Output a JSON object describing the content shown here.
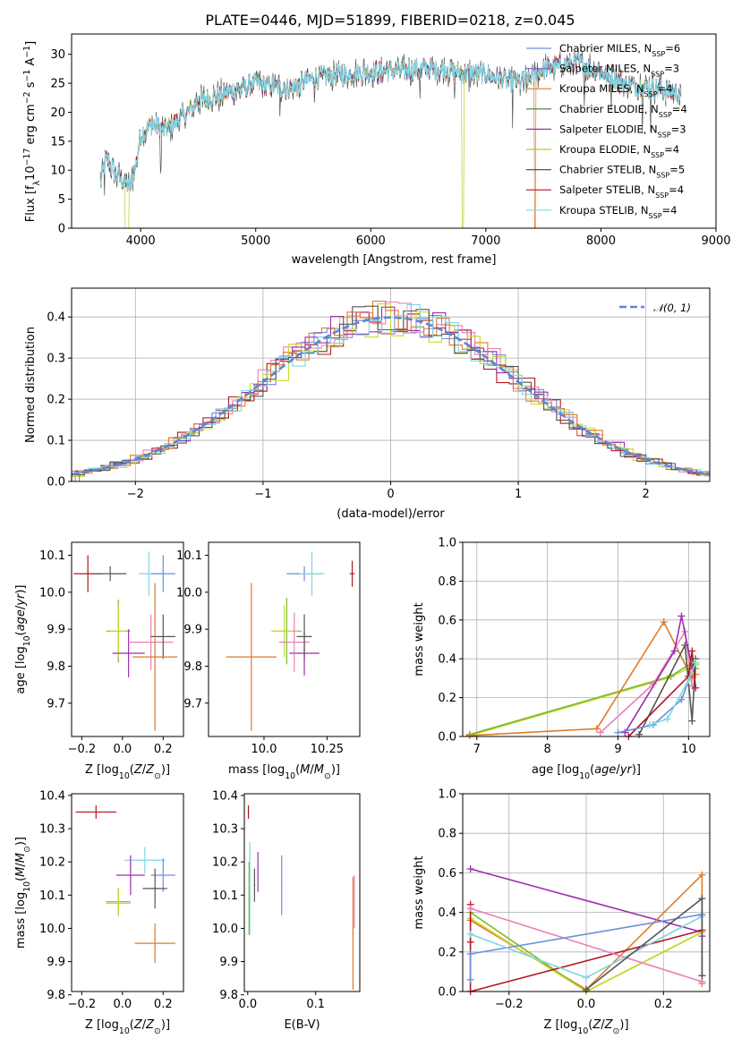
{
  "figure_title": "PLATE=0446, MJD=51899, FIBERID=0218, z=0.045",
  "colors": {
    "Chabrier MILES": "#6a8fdc",
    "Salpeter MILES": "#8a6ac8",
    "Kroupa MILES": "#e07b28",
    "Chabrier ELODIE": "#3c7a3c",
    "Salpeter ELODIE": "#9b2fae",
    "Kroupa ELODIE": "#b8c92a",
    "Chabrier STELIB": "#555555",
    "Salpeter STELIB": "#b0171f",
    "Kroupa STELIB": "#7fd6e0",
    "green": "#7ab82e",
    "pink": "#e87fb8",
    "orange": "#e07b28",
    "purple": "#9b2fae",
    "grey": "#555555",
    "red": "#b0171f",
    "cyan": "#7fd6e0",
    "blue": "#6a8fdc",
    "yellow": "#c9d92a"
  },
  "chart_data": [
    {
      "type": "line",
      "panel": "spectrum",
      "title": "PLATE=0446, MJD=51899, FIBERID=0218, z=0.045",
      "xlabel": "wavelength [Angstrom, rest frame]",
      "ylabel": "Flux [f_λ 10^-17 erg cm^-2 s^-1 A^-1]",
      "xlim": [
        3400,
        9000
      ],
      "ylim": [
        0,
        33.5
      ],
      "xticks": [
        4000,
        5000,
        6000,
        7000,
        8000,
        9000
      ],
      "yticks": [
        0,
        5,
        10,
        15,
        20,
        25,
        30
      ],
      "continuum": {
        "x": [
          3650,
          3700,
          3800,
          3900,
          3950,
          4000,
          4100,
          4200,
          4400,
          4500,
          4700,
          5000,
          5300,
          5500,
          6000,
          6500,
          7000,
          7300,
          7500,
          7800,
          8000,
          8200,
          8500,
          8700
        ],
        "y": [
          8,
          12,
          9,
          7,
          10,
          16,
          18,
          17,
          19.5,
          22,
          23,
          25,
          24,
          26,
          27,
          27.5,
          26.5,
          25,
          27.5,
          28.5,
          27,
          25,
          24,
          23
        ]
      },
      "legend": {
        "placement": "upper-right",
        "entries": [
          {
            "name": "Chabrier MILES, N_SSP=6",
            "base": "Chabrier MILES, N",
            "sub": "SSP",
            "tail": "=6"
          },
          {
            "name": "Salpeter MILES, N_SSP=3",
            "base": "Salpeter MILES, N",
            "sub": "SSP",
            "tail": "=3"
          },
          {
            "name": "Kroupa MILES, N_SSP=4",
            "base": "Kroupa MILES, N",
            "sub": "SSP",
            "tail": "=4"
          },
          {
            "name": "Chabrier ELODIE, N_SSP=4",
            "base": "Chabrier ELODIE, N",
            "sub": "SSP",
            "tail": "=4"
          },
          {
            "name": "Salpeter ELODIE, N_SSP=3",
            "base": "Salpeter ELODIE, N",
            "sub": "SSP",
            "tail": "=3"
          },
          {
            "name": "Kroupa ELODIE, N_SSP=4",
            "base": "Kroupa ELODIE, N",
            "sub": "SSP",
            "tail": "=4"
          },
          {
            "name": "Chabrier STELIB, N_SSP=5",
            "base": "Chabrier STELIB, N",
            "sub": "SSP",
            "tail": "=5"
          },
          {
            "name": "Salpeter STELIB, N_SSP=4",
            "base": "Salpeter STELIB, N",
            "sub": "SSP",
            "tail": "=4"
          },
          {
            "name": "Kroupa STELIB, N_SSP=4",
            "base": "Kroupa STELIB, N",
            "sub": "SSP",
            "tail": "=4"
          }
        ]
      }
    },
    {
      "type": "histogram",
      "panel": "residuals",
      "xlabel": "(data-model)/error",
      "ylabel": "Normed distribution",
      "xlim": [
        -2.5,
        2.5
      ],
      "ylim": [
        0,
        0.47
      ],
      "xticks": [
        -2,
        -1,
        0,
        1,
        2
      ],
      "yticks": [
        0.0,
        0.1,
        0.2,
        0.3,
        0.4
      ],
      "grid": true,
      "legend": {
        "label": "𝒩(0, 1)",
        "placement": "upper-right",
        "style": "dashed"
      },
      "bin_width": 0.1,
      "series_colors": [
        "#6a8fdc",
        "#b0171f",
        "#e87fb8",
        "#c9d92a",
        "#9b2fae",
        "#e07b28",
        "#555555",
        "#7fd6e0"
      ]
    },
    {
      "type": "scatter",
      "panel": "age-vs-Z",
      "xlabel": "Z [log10(Z/Z⊙)]",
      "ylabel": "age [log10(age/yr)]",
      "xlim": [
        -0.25,
        0.3
      ],
      "ylim": [
        9.61,
        10.135
      ],
      "xticks": [
        -0.2,
        0.0,
        0.2
      ],
      "yticks": [
        9.7,
        9.8,
        9.9,
        10.0,
        10.1
      ],
      "points": [
        {
          "x": -0.17,
          "y": 10.05,
          "xerr": 0.07,
          "yerr": 0.05,
          "color": "#b0171f"
        },
        {
          "x": -0.06,
          "y": 10.05,
          "xerr": 0.08,
          "yerr": 0.02,
          "color": "#555555"
        },
        {
          "x": 0.13,
          "y": 10.05,
          "xerr": 0.05,
          "yerr": 0.06,
          "color": "#7fd6e0"
        },
        {
          "x": 0.2,
          "y": 10.05,
          "xerr": 0.06,
          "yerr": 0.05,
          "color": "#6a8fdc"
        },
        {
          "x": -0.02,
          "y": 9.895,
          "xerr": 0.06,
          "yerr": 0.085,
          "color": "#7ab82e"
        },
        {
          "x": -0.02,
          "y": 9.895,
          "xerr": 0.04,
          "yerr": 0.07,
          "color": "#c9d92a"
        },
        {
          "x": 0.03,
          "y": 9.835,
          "xerr": 0.08,
          "yerr": 0.065,
          "color": "#9b2fae"
        },
        {
          "x": 0.14,
          "y": 9.865,
          "xerr": 0.11,
          "yerr": 0.075,
          "color": "#e87fb8"
        },
        {
          "x": 0.2,
          "y": 9.88,
          "xerr": 0.06,
          "yerr": 0.06,
          "color": "#555555"
        },
        {
          "x": 0.16,
          "y": 9.825,
          "xerr": 0.11,
          "yerr": 0.2,
          "color": "#e07b28"
        }
      ]
    },
    {
      "type": "scatter",
      "panel": "age-vs-mass",
      "xlabel": "mass [log10(M/M⊙)]",
      "xlim": [
        9.78,
        10.38
      ],
      "ylim": [
        9.61,
        10.135
      ],
      "xticks": [
        10.0,
        10.25
      ],
      "yticks": [
        9.7,
        9.8,
        9.9,
        10.0,
        10.1
      ],
      "points": [
        {
          "x": 10.35,
          "y": 10.05,
          "xerr": 0.01,
          "yerr": 0.035,
          "color": "#b0171f"
        },
        {
          "x": 10.16,
          "y": 10.05,
          "xerr": 0.07,
          "yerr": 0.02,
          "color": "#6a8fdc"
        },
        {
          "x": 10.19,
          "y": 10.05,
          "xerr": 0.05,
          "yerr": 0.06,
          "color": "#7fd6e0"
        },
        {
          "x": 10.09,
          "y": 9.895,
          "xerr": 0.06,
          "yerr": 0.09,
          "color": "#7ab82e"
        },
        {
          "x": 10.08,
          "y": 9.895,
          "xerr": 0.05,
          "yerr": 0.07,
          "color": "#c9d92a"
        },
        {
          "x": 10.16,
          "y": 9.835,
          "xerr": 0.06,
          "yerr": 0.06,
          "color": "#9b2fae"
        },
        {
          "x": 10.12,
          "y": 9.865,
          "xerr": 0.06,
          "yerr": 0.08,
          "color": "#e87fb8"
        },
        {
          "x": 10.16,
          "y": 9.88,
          "xerr": 0.03,
          "yerr": 0.06,
          "color": "#555555"
        },
        {
          "x": 9.95,
          "y": 9.825,
          "xerr": 0.1,
          "yerr": 0.2,
          "color": "#e07b28"
        }
      ]
    },
    {
      "type": "line",
      "panel": "mass-weight-vs-age",
      "xlabel": "age [log10(age/yr)]",
      "ylabel": "mass weight",
      "xlim": [
        6.8,
        10.3
      ],
      "ylim": [
        0.0,
        1.0
      ],
      "xticks": [
        7,
        8,
        9,
        10
      ],
      "yticks": [
        0.0,
        0.2,
        0.4,
        0.6,
        0.8,
        1.0
      ],
      "grid": true,
      "series": [
        {
          "color": "#c9d92a",
          "x": [
            6.9,
            9.7,
            10.0,
            10.1
          ],
          "y": [
            0.005,
            0.3,
            0.35,
            0.37
          ]
        },
        {
          "color": "#7ab82e",
          "x": [
            6.9,
            9.75,
            10.05,
            10.1
          ],
          "y": [
            0.01,
            0.31,
            0.38,
            0.35
          ]
        },
        {
          "color": "#e07b28",
          "x": [
            6.9,
            8.7,
            9.65,
            10.05,
            10.1
          ],
          "y": [
            0.005,
            0.04,
            0.59,
            0.3,
            0.32
          ]
        },
        {
          "color": "#e87fb8",
          "x": [
            8.75,
            9.5,
            9.95,
            10.05
          ],
          "y": [
            0.02,
            0.27,
            0.54,
            0.26
          ]
        },
        {
          "color": "#9b2fae",
          "x": [
            9.1,
            9.8,
            9.9,
            10.05
          ],
          "y": [
            0.02,
            0.44,
            0.62,
            0.35
          ]
        },
        {
          "color": "#555555",
          "x": [
            9.3,
            9.95,
            10.05,
            10.1
          ],
          "y": [
            0.01,
            0.47,
            0.08,
            0.4
          ]
        },
        {
          "color": "#b0171f",
          "x": [
            9.15,
            10.0,
            10.05,
            10.1
          ],
          "y": [
            0.0,
            0.31,
            0.44,
            0.25
          ]
        },
        {
          "color": "#6a8fdc",
          "x": [
            9.0,
            9.5,
            9.9,
            10.1
          ],
          "y": [
            0.02,
            0.06,
            0.19,
            0.38
          ]
        },
        {
          "color": "#7fd6e0",
          "x": [
            9.45,
            9.7,
            10.0,
            10.1
          ],
          "y": [
            0.06,
            0.09,
            0.29,
            0.38
          ]
        }
      ]
    },
    {
      "type": "scatter",
      "panel": "mass-vs-Z",
      "xlabel": "Z [log10(Z/Z⊙)]",
      "ylabel": "mass [log10(M/M⊙)]",
      "xlim": [
        -0.25,
        0.3
      ],
      "ylim": [
        9.81,
        10.405
      ],
      "xticks": [
        -0.2,
        0.0,
        0.2
      ],
      "yticks": [
        9.8,
        9.9,
        10.0,
        10.1,
        10.2,
        10.3,
        10.4
      ],
      "points": [
        {
          "x": -0.13,
          "y": 10.35,
          "xerr": 0.1,
          "yerr": 0.02,
          "color": "#b0171f"
        },
        {
          "x": 0.11,
          "y": 10.205,
          "xerr": 0.1,
          "yerr": 0.04,
          "color": "#7fd6e0"
        },
        {
          "x": 0.04,
          "y": 10.16,
          "xerr": 0.07,
          "yerr": 0.06,
          "color": "#9b2fae"
        },
        {
          "x": 0.2,
          "y": 10.16,
          "xerr": 0.06,
          "yerr": 0.05,
          "color": "#6a8fdc"
        },
        {
          "x": 0.16,
          "y": 10.12,
          "xerr": 0.06,
          "yerr": 0.06,
          "color": "#555555"
        },
        {
          "x": -0.02,
          "y": 10.08,
          "xerr": 0.06,
          "yerr": 0.04,
          "color": "#7ab82e"
        },
        {
          "x": -0.02,
          "y": 10.075,
          "xerr": 0.06,
          "yerr": 0.04,
          "color": "#c9d92a"
        },
        {
          "x": 0.16,
          "y": 9.955,
          "xerr": 0.1,
          "yerr": 0.06,
          "color": "#e07b28"
        }
      ]
    },
    {
      "type": "scatter",
      "panel": "mass-vs-EBV",
      "xlabel": "E(B-V)",
      "xlim": [
        -0.005,
        0.165
      ],
      "ylim": [
        9.81,
        10.405
      ],
      "xticks": [
        0.0,
        0.1
      ],
      "yticks": [
        9.8,
        9.9,
        10.0,
        10.1,
        10.2,
        10.3,
        10.4
      ],
      "points": [
        {
          "x": 0.001,
          "y": 10.35,
          "xerr": 0.001,
          "yerr": 0.02,
          "color": "#b0171f"
        },
        {
          "x": 0.003,
          "y": 10.12,
          "xerr": 0.001,
          "yerr": 0.14,
          "color": "#7fd6e0"
        },
        {
          "x": 0.002,
          "y": 10.09,
          "xerr": 0.001,
          "yerr": 0.11,
          "color": "#7ab82e"
        },
        {
          "x": 0.01,
          "y": 10.13,
          "xerr": 0.001,
          "yerr": 0.05,
          "color": "#555555"
        },
        {
          "x": 0.015,
          "y": 10.17,
          "xerr": 0.001,
          "yerr": 0.06,
          "color": "#9b2fae"
        },
        {
          "x": 0.05,
          "y": 10.13,
          "xerr": 0.001,
          "yerr": 0.09,
          "color": "#6a8fdc"
        },
        {
          "x": 0.155,
          "y": 9.985,
          "xerr": 0.001,
          "yerr": 0.17,
          "color": "#e07b28"
        },
        {
          "x": 0.157,
          "y": 10.08,
          "xerr": 0.001,
          "yerr": 0.08,
          "color": "#e87fb8"
        }
      ]
    },
    {
      "type": "line",
      "panel": "mass-weight-vs-Z",
      "xlabel": "Z [log10(Z/Z⊙)]",
      "ylabel": "mass weight",
      "xlim": [
        -0.32,
        0.32
      ],
      "ylim": [
        0.0,
        1.0
      ],
      "xticks": [
        -0.2,
        0.0,
        0.2
      ],
      "yticks": [
        0.0,
        0.2,
        0.4,
        0.6,
        0.8,
        1.0
      ],
      "grid": true,
      "series": [
        {
          "color": "#9b2fae",
          "x": [
            -0.3,
            0.3,
            0.3
          ],
          "y": [
            0.62,
            0.3,
            0.28
          ]
        },
        {
          "color": "#e07b28",
          "x": [
            -0.3,
            0.0,
            0.3,
            0.3
          ],
          "y": [
            0.36,
            0.01,
            0.59,
            0.04
          ]
        },
        {
          "color": "#7ab82e",
          "x": [
            -0.3,
            0.0,
            0.3
          ],
          "y": [
            0.4,
            0.0,
            0.3
          ]
        },
        {
          "color": "#c9d92a",
          "x": [
            -0.3,
            0.0,
            0.3
          ],
          "y": [
            0.37,
            0.0,
            0.3
          ]
        },
        {
          "color": "#b0171f",
          "x": [
            -0.3,
            -0.3,
            -0.3,
            0.3
          ],
          "y": [
            0.44,
            0.25,
            0.0,
            0.31
          ]
        },
        {
          "color": "#e87fb8",
          "x": [
            -0.3,
            0.3
          ],
          "y": [
            0.42,
            0.05
          ]
        },
        {
          "color": "#6a8fdc",
          "x": [
            -0.3,
            -0.3,
            0.3
          ],
          "y": [
            0.06,
            0.19,
            0.39
          ]
        },
        {
          "color": "#7fd6e0",
          "x": [
            -0.3,
            0.0,
            0.3
          ],
          "y": [
            0.29,
            0.07,
            0.38
          ]
        },
        {
          "color": "#555555",
          "x": [
            0.0,
            0.3,
            0.3
          ],
          "y": [
            0.01,
            0.47,
            0.08
          ]
        }
      ]
    }
  ]
}
